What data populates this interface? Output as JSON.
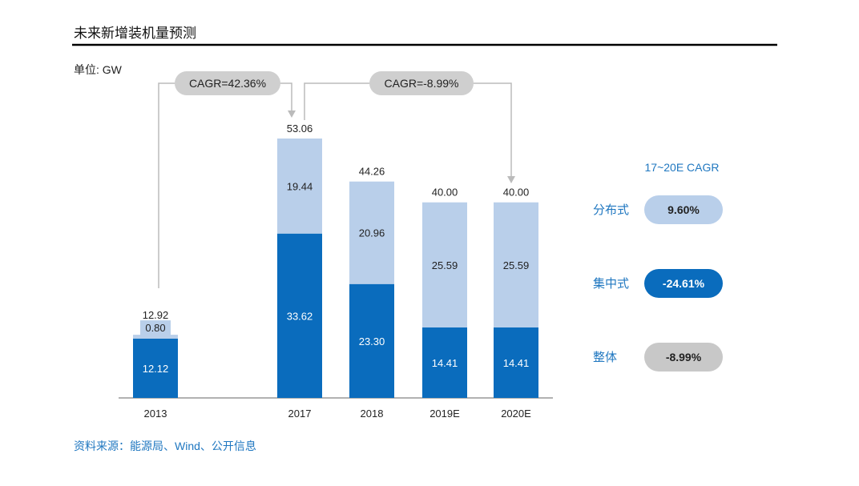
{
  "title": "未来新增装机量预测",
  "unit": "单位: GW",
  "source": "资料来源：能源局、Wind、公开信息",
  "colors": {
    "distributed": "#b9cfea",
    "centralized": "#0a6cbd",
    "overall": "#c8c8c8",
    "accent_text": "#1f77c0"
  },
  "annotations": [
    {
      "label": "CAGR=42.36%",
      "from": "2013",
      "to": "2017"
    },
    {
      "label": "CAGR=-8.99%",
      "from": "2017",
      "to": "2020E"
    }
  ],
  "cagr_panel": {
    "title": "17~20E CAGR",
    "items": [
      {
        "label": "分布式",
        "value": "9.60%",
        "color": "#b9cfea",
        "text_color": "#222222"
      },
      {
        "label": "集中式",
        "value": "-24.61%",
        "color": "#0a6cbd",
        "text_color": "#ffffff"
      },
      {
        "label": "整体",
        "value": "-8.99%",
        "color": "#c8c8c8",
        "text_color": "#222222"
      }
    ]
  },
  "chart_data": {
    "type": "bar",
    "stacked": true,
    "categories": [
      "2013",
      "",
      "2017",
      "2018",
      "2019E",
      "2020E"
    ],
    "series": [
      {
        "key": "centralized",
        "values": [
          12.12,
          null,
          33.62,
          23.3,
          14.41,
          14.41
        ],
        "labels": [
          "12.12",
          "",
          "33.62",
          "23.30",
          "14.41",
          "14.41"
        ]
      },
      {
        "key": "distributed",
        "values": [
          0.8,
          null,
          19.44,
          20.96,
          25.59,
          25.59
        ],
        "labels": [
          "0.80",
          "",
          "19.44",
          "20.96",
          "25.59",
          "25.59"
        ]
      }
    ],
    "totals": [
      "12.92",
      "",
      "53.06",
      "44.26",
      "40.00",
      "40.00"
    ],
    "ylim": [
      0,
      53.06
    ],
    "grid": false
  }
}
